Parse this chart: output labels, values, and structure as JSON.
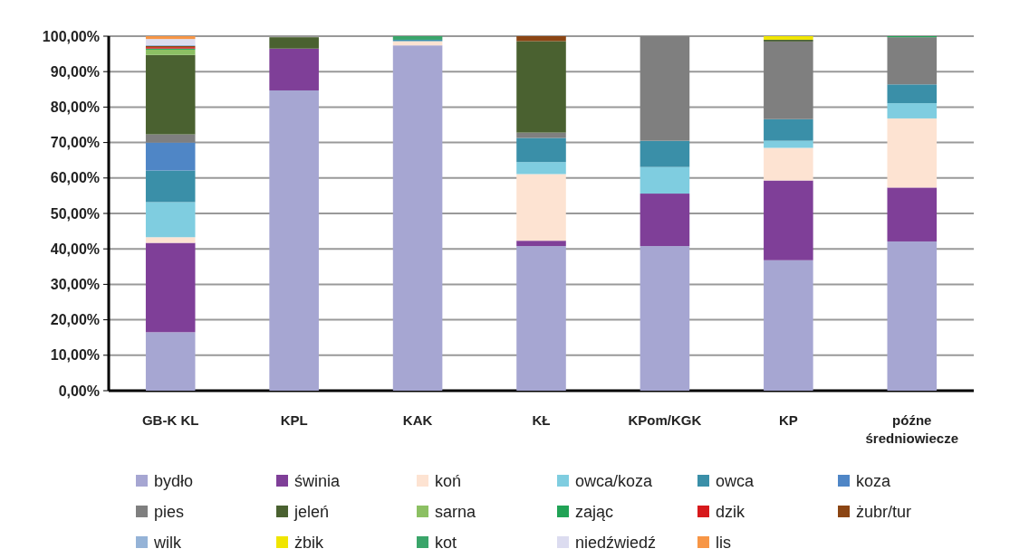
{
  "chart_data": {
    "type": "bar",
    "stacked": true,
    "categories": [
      "GB-K KL",
      "KPL",
      "KAK",
      "KŁ",
      "KPom/KGK",
      "KP",
      "późne średniowiecze"
    ],
    "ylim": [
      0,
      100
    ],
    "yticks": [
      {
        "value": 0,
        "label": "0,00%"
      },
      {
        "value": 10,
        "label": "10,00%"
      },
      {
        "value": 20,
        "label": "20,00%"
      },
      {
        "value": 30,
        "label": "30,00%"
      },
      {
        "value": 40,
        "label": "40,00%"
      },
      {
        "value": 50,
        "label": "50,00%"
      },
      {
        "value": 60,
        "label": "60,00%"
      },
      {
        "value": 70,
        "label": "70,00%"
      },
      {
        "value": 80,
        "label": "80,00%"
      },
      {
        "value": 90,
        "label": "90,00%"
      },
      {
        "value": 100,
        "label": "100,00%"
      }
    ],
    "grid": "y",
    "legend": "bottom",
    "series": [
      {
        "name": "bydło",
        "color": "#a6a6d2",
        "values": [
          16.5,
          84.7,
          97.4,
          40.8,
          40.8,
          36.8,
          42.1
        ]
      },
      {
        "name": "świnia",
        "color": "#7f3f98",
        "values": [
          25.2,
          11.8,
          0,
          1.5,
          14.8,
          22.5,
          15.2
        ]
      },
      {
        "name": "koń",
        "color": "#fde3d2",
        "values": [
          1.6,
          0,
          1.2,
          18.8,
          0,
          9.2,
          19.5
        ]
      },
      {
        "name": "owca/koza",
        "color": "#7fcde0",
        "values": [
          9.9,
          0,
          0,
          3.4,
          7.5,
          2.0,
          4.3
        ]
      },
      {
        "name": "owca",
        "color": "#3a8fa8",
        "values": [
          8.9,
          0,
          0.4,
          6.8,
          7.4,
          6.1,
          5.3
        ]
      },
      {
        "name": "koza",
        "color": "#4f86c6",
        "values": [
          7.9,
          0,
          0,
          0,
          0,
          0,
          0
        ]
      },
      {
        "name": "pies",
        "color": "#7f7f7f",
        "values": [
          2.3,
          0,
          0,
          1.5,
          29.5,
          21.9,
          13.3
        ]
      },
      {
        "name": "jeleń",
        "color": "#4a6130",
        "values": [
          22.4,
          3.2,
          0,
          25.8,
          0,
          0.5,
          0
        ]
      },
      {
        "name": "sarna",
        "color": "#8cc063",
        "values": [
          1.5,
          null,
          0,
          0,
          0,
          0,
          0
        ]
      },
      {
        "name": "zając",
        "color": "#21a356",
        "values": [
          0.3,
          0,
          0,
          0,
          0,
          0,
          0.3
        ]
      },
      {
        "name": "dzik",
        "color": "#d7191c",
        "values": [
          0.4,
          0,
          0,
          0,
          0,
          0,
          0
        ]
      },
      {
        "name": "żubr/tur",
        "color": "#8b4513",
        "values": [
          0.3,
          0,
          0,
          1.4,
          0,
          0,
          0
        ]
      },
      {
        "name": "wilk",
        "color": "#95b3d7",
        "values": [
          0.3,
          0,
          0,
          0,
          0,
          0,
          0
        ]
      },
      {
        "name": "żbik",
        "color": "#f0e500",
        "values": [
          0,
          0,
          0,
          0,
          0,
          1.0,
          0
        ]
      },
      {
        "name": "kot",
        "color": "#3aa56a",
        "values": [
          0,
          0,
          1.0,
          0,
          0,
          0,
          0
        ]
      },
      {
        "name": "niedźwiedź",
        "color": "#dcdcf0",
        "values": [
          1.7,
          0,
          0,
          0,
          0,
          0,
          0
        ]
      },
      {
        "name": "lis",
        "color": "#f79646",
        "values": [
          0.8,
          0,
          0,
          0,
          0,
          0,
          0
        ]
      }
    ]
  }
}
